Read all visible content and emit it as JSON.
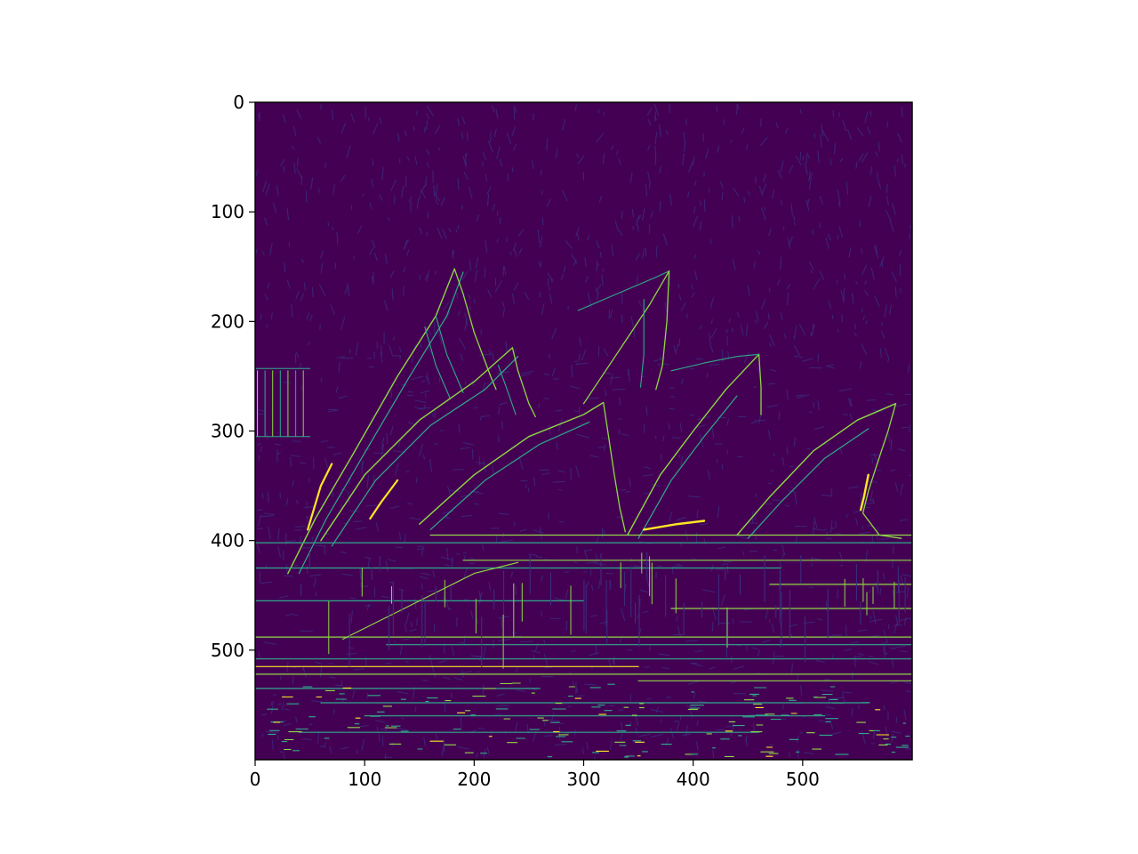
{
  "chart_data": {
    "type": "heatmap",
    "title": "",
    "xlabel": "",
    "ylabel": "",
    "xlim": [
      0,
      600
    ],
    "ylim": [
      600,
      0
    ],
    "x_ticks": [
      0,
      100,
      200,
      300,
      400,
      500
    ],
    "y_ticks": [
      0,
      100,
      200,
      300,
      400,
      500
    ],
    "x_tick_labels": [
      "0",
      "100",
      "200",
      "300",
      "400",
      "500"
    ],
    "y_tick_labels": [
      "0",
      "100",
      "200",
      "300",
      "400",
      "500"
    ],
    "colormap": "viridis",
    "colors": {
      "background": "#440154",
      "faint_edge": "#3b2f7f",
      "mid_edge": "#2fa98a",
      "strong_edge": "#8fd744",
      "max_edge": "#fde725"
    },
    "content": "edge-detection image of the Sydney Opera House",
    "grid": false,
    "legend": "none"
  }
}
